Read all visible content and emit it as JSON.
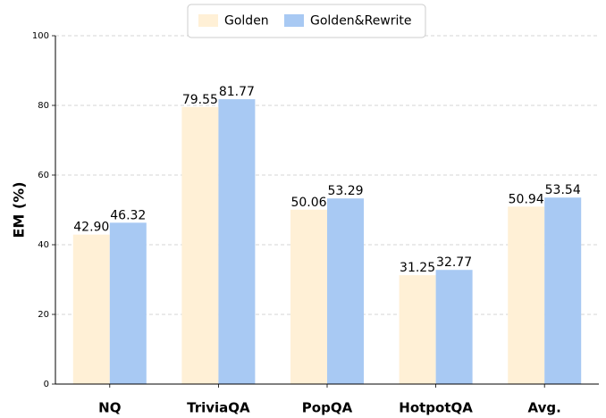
{
  "chart_data": {
    "type": "bar",
    "y_label": "EM (%)",
    "categories": [
      "NQ",
      "TriviaQA",
      "PopQA",
      "HotpotQA",
      "Avg."
    ],
    "series": [
      {
        "name": "Golden",
        "color": "#fff0d6",
        "values": [
          42.9,
          79.55,
          50.06,
          31.25,
          50.94
        ],
        "value_labels": [
          "42.90",
          "79.55",
          "50.06",
          "31.25",
          "50.94"
        ]
      },
      {
        "name": "Golden&Rewrite",
        "color": "#a8c9f3",
        "values": [
          46.32,
          81.77,
          53.29,
          32.77,
          53.54
        ],
        "value_labels": [
          "46.32",
          "81.77",
          "53.29",
          "32.77",
          "53.54"
        ]
      }
    ],
    "ylim": [
      0,
      100
    ],
    "yticks": [
      0,
      20,
      40,
      60,
      80,
      100
    ],
    "grid": true,
    "legend": "top"
  }
}
